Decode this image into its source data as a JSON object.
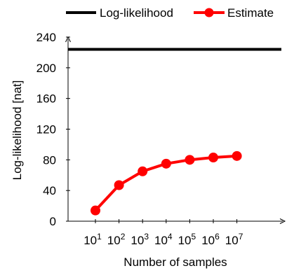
{
  "chart_data": {
    "type": "line",
    "title": "",
    "xlabel": "Number of samples",
    "ylabel": "Log-likelihood [nat]",
    "legend_position": "top",
    "grid": false,
    "y_axis": {
      "ylim": [
        0,
        240
      ],
      "ticks": [
        0,
        40,
        80,
        120,
        160,
        200,
        240
      ]
    },
    "x_axis": {
      "scale": "log",
      "tick_labels": [
        {
          "base": "10",
          "exp": "1"
        },
        {
          "base": "10",
          "exp": "2"
        },
        {
          "base": "10",
          "exp": "3"
        },
        {
          "base": "10",
          "exp": "4"
        },
        {
          "base": "10",
          "exp": "5"
        },
        {
          "base": "10",
          "exp": "6"
        },
        {
          "base": "10",
          "exp": "7"
        }
      ]
    },
    "series": [
      {
        "name": "Log-likelihood",
        "style": "line",
        "color": "#000000",
        "value": 224
      },
      {
        "name": "Estimate",
        "style": "line-marker",
        "color": "#ff0000",
        "x": [
          10,
          100,
          1000,
          10000,
          100000,
          1000000,
          10000000
        ],
        "values": [
          14,
          47,
          65,
          75,
          80,
          83,
          85
        ]
      }
    ]
  }
}
